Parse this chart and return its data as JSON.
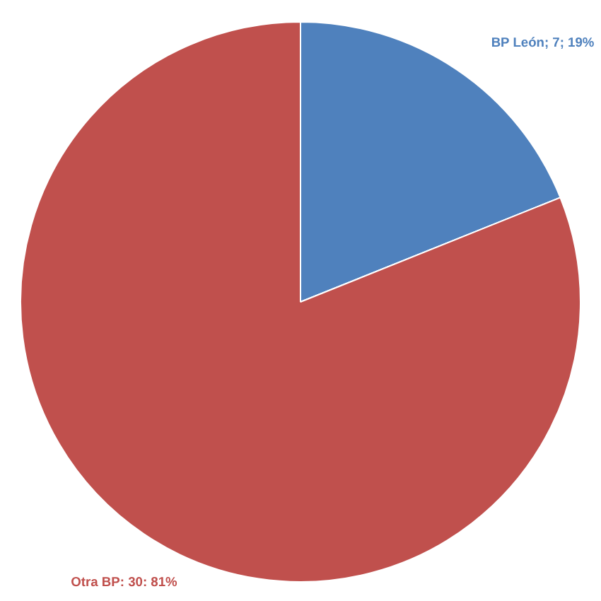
{
  "chart_data": {
    "type": "pie",
    "categories": [
      "BP León",
      "Otra BP"
    ],
    "values": [
      7,
      30
    ],
    "colors": [
      "#4f81bd",
      "#c0504d"
    ],
    "value_labels": [
      "; 7; 19%",
      ": 30: 81%"
    ]
  }
}
